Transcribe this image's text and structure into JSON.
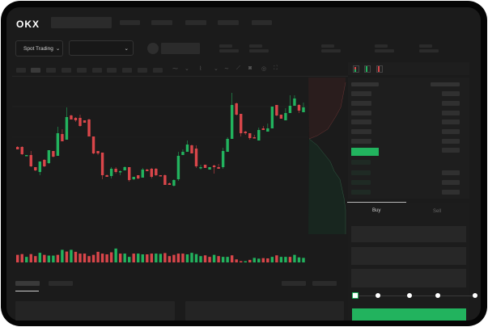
{
  "header": {
    "logo": "OKX",
    "market_selector": "Spot Trading",
    "pair_selector": "",
    "chevron": "⌄"
  },
  "trade_form": {
    "tabs": [
      {
        "label": "Buy",
        "active": true
      },
      {
        "label": "Sell",
        "active": false
      }
    ],
    "slider_fraction": 0,
    "slider_stops": 5
  },
  "colors": {
    "up": "#22b35e",
    "down": "#d9464a",
    "accent": "#22b35e",
    "background": "#1b1b1b"
  },
  "icons": [
    "orderbook-both-icon",
    "orderbook-bids-icon",
    "orderbook-asks-icon",
    "draw-line-icon",
    "ruler-icon",
    "camera-icon",
    "settings-icon",
    "fullscreen-icon"
  ],
  "chart_data": {
    "type": "candlestick",
    "title": "",
    "candles_ohlc": [
      [
        68,
        69,
        65,
        65
      ],
      [
        68,
        69,
        58,
        59
      ],
      [
        57,
        58,
        57,
        58
      ],
      [
        58,
        63,
        43,
        44
      ],
      [
        43,
        43,
        38,
        39
      ],
      [
        37,
        50,
        33,
        50
      ],
      [
        52,
        53,
        43,
        44
      ],
      [
        48,
        64,
        47,
        64
      ],
      [
        63,
        63,
        55,
        56
      ],
      [
        57,
        93,
        57,
        85
      ],
      [
        84,
        90,
        75,
        75
      ],
      [
        77,
        117,
        77,
        105
      ],
      [
        107,
        108,
        102,
        102
      ],
      [
        104,
        105,
        99,
        101
      ],
      [
        104,
        108,
        93,
        94
      ],
      [
        101,
        101,
        98,
        98
      ],
      [
        102,
        103,
        81,
        81
      ],
      [
        81,
        81,
        59,
        60
      ],
      [
        63,
        63,
        58,
        60
      ],
      [
        61,
        61,
        28,
        33
      ],
      [
        33,
        34,
        31,
        31
      ],
      [
        32,
        43,
        29,
        41
      ],
      [
        41,
        43,
        35,
        37
      ],
      [
        37,
        39,
        33,
        38
      ],
      [
        39,
        44,
        39,
        43
      ],
      [
        43,
        43,
        25,
        27
      ],
      [
        28,
        31,
        27,
        31
      ],
      [
        33,
        33,
        28,
        29
      ],
      [
        30,
        42,
        30,
        40
      ],
      [
        40,
        41,
        38,
        38
      ],
      [
        41,
        42,
        29,
        31
      ],
      [
        41,
        42,
        32,
        33
      ],
      [
        33,
        33,
        32,
        32
      ],
      [
        33,
        34,
        21,
        21
      ],
      [
        23,
        24,
        21,
        21
      ],
      [
        20,
        28,
        19,
        27
      ],
      [
        28,
        62,
        26,
        57
      ],
      [
        58,
        65,
        58,
        62
      ],
      [
        62,
        76,
        62,
        71
      ],
      [
        70,
        71,
        60,
        60
      ],
      [
        66,
        70,
        42,
        44
      ],
      [
        42,
        46,
        40,
        43
      ],
      [
        46,
        46,
        42,
        42
      ],
      [
        40,
        43,
        40,
        43
      ],
      [
        45,
        46,
        35,
        43
      ],
      [
        43,
        47,
        41,
        41
      ],
      [
        43,
        67,
        41,
        63
      ],
      [
        62,
        80,
        62,
        78
      ],
      [
        78,
        135,
        78,
        120
      ],
      [
        122,
        123,
        107,
        108
      ],
      [
        109,
        109,
        81,
        85
      ],
      [
        87,
        88,
        83,
        85
      ],
      [
        85,
        85,
        77,
        79
      ],
      [
        80,
        83,
        79,
        79
      ],
      [
        76,
        92,
        76,
        89
      ],
      [
        91,
        94,
        89,
        89
      ],
      [
        87,
        97,
        87,
        91
      ],
      [
        91,
        118,
        91,
        118
      ],
      [
        120,
        120,
        106,
        107
      ],
      [
        108,
        108,
        103,
        103
      ],
      [
        101,
        116,
        101,
        110
      ],
      [
        110,
        132,
        110,
        119
      ],
      [
        119,
        132,
        119,
        128
      ],
      [
        120,
        121,
        110,
        113
      ],
      [
        111,
        123,
        111,
        117
      ]
    ],
    "volumes": [
      30,
      33,
      22,
      33,
      25,
      38,
      30,
      27,
      27,
      30,
      50,
      43,
      50,
      42,
      35,
      35,
      25,
      30,
      42,
      35,
      32,
      40,
      55,
      35,
      35,
      22,
      35,
      35,
      32,
      32,
      35,
      35,
      34,
      37,
      25,
      30,
      35,
      35,
      32,
      38,
      33,
      25,
      28,
      22,
      30,
      25,
      22,
      22,
      28,
      12,
      5,
      5,
      10,
      18,
      15,
      17,
      16,
      22,
      28,
      22,
      22,
      22,
      30,
      20,
      18
    ],
    "volume_up": [
      0,
      0,
      1,
      0,
      0,
      1,
      0,
      1,
      1,
      0,
      1,
      0,
      1,
      0,
      0,
      0,
      0,
      0,
      0,
      0,
      0,
      0,
      1,
      0,
      1,
      1,
      0,
      1,
      1,
      0,
      0,
      1,
      1,
      0,
      0,
      0,
      0,
      0,
      1,
      1,
      1,
      1,
      0,
      0,
      1,
      0,
      1,
      1,
      0,
      0,
      0,
      1,
      0,
      1,
      1,
      0,
      0,
      1,
      0,
      1,
      1,
      0,
      1,
      1,
      1
    ]
  }
}
